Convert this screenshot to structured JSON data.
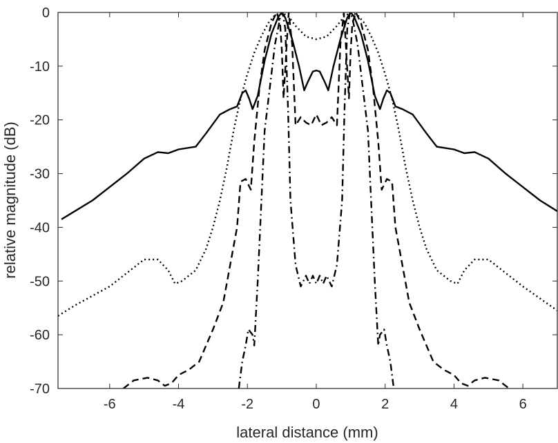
{
  "chart_data": {
    "type": "line",
    "title": "",
    "xlabel": "lateral distance (mm)",
    "ylabel": "relative magnitude (dB)",
    "xlim": [
      -7.5,
      7.0
    ],
    "ylim": [
      -70,
      0
    ],
    "xticks": [
      -6,
      -4,
      -2,
      0,
      2,
      4,
      6
    ],
    "xtick_labels": [
      "-6",
      "-4",
      "-2",
      "0",
      "2",
      "4",
      "6"
    ],
    "yticks": [
      0,
      -10,
      -20,
      -30,
      -40,
      -50,
      -60,
      -70
    ],
    "ytick_labels": [
      "0",
      "-10",
      "-20",
      "-30",
      "-40",
      "-50",
      "-60",
      "-70"
    ],
    "grid": false,
    "legend": "none",
    "series": [
      {
        "style": "solid",
        "points": [
          [
            -7.4,
            -38.5
          ],
          [
            -6.5,
            -35.0
          ],
          [
            -5.5,
            -30.0
          ],
          [
            -5.0,
            -27.2
          ],
          [
            -4.6,
            -26.0
          ],
          [
            -4.3,
            -26.2
          ],
          [
            -4.0,
            -25.5
          ],
          [
            -3.5,
            -25.0
          ],
          [
            -3.2,
            -22.5
          ],
          [
            -2.8,
            -19.0
          ],
          [
            -2.5,
            -18.0
          ],
          [
            -2.3,
            -17.5
          ],
          [
            -2.15,
            -15.0
          ],
          [
            -2.05,
            -14.5
          ],
          [
            -1.95,
            -16.0
          ],
          [
            -1.85,
            -18.0
          ],
          [
            -1.7,
            -15.5
          ],
          [
            -1.5,
            -9.0
          ],
          [
            -1.3,
            -4.0
          ],
          [
            -1.1,
            -0.8
          ],
          [
            -1.0,
            0.0
          ],
          [
            -0.9,
            -1.0
          ],
          [
            -0.7,
            -5.0
          ],
          [
            -0.5,
            -10.0
          ],
          [
            -0.35,
            -14.5
          ],
          [
            -0.25,
            -13.0
          ],
          [
            -0.1,
            -11.0
          ],
          [
            0.0,
            -10.8
          ],
          [
            0.1,
            -11.0
          ],
          [
            0.25,
            -13.0
          ],
          [
            0.35,
            -14.5
          ],
          [
            0.5,
            -10.0
          ],
          [
            0.7,
            -5.0
          ],
          [
            0.9,
            -1.0
          ],
          [
            1.0,
            0.0
          ],
          [
            1.1,
            -0.8
          ],
          [
            1.3,
            -4.0
          ],
          [
            1.5,
            -9.0
          ],
          [
            1.7,
            -15.5
          ],
          [
            1.85,
            -18.0
          ],
          [
            1.95,
            -16.0
          ],
          [
            2.05,
            -14.5
          ],
          [
            2.15,
            -15.0
          ],
          [
            2.3,
            -17.5
          ],
          [
            2.5,
            -18.0
          ],
          [
            2.8,
            -19.0
          ],
          [
            3.2,
            -22.5
          ],
          [
            3.5,
            -25.0
          ],
          [
            4.0,
            -25.5
          ],
          [
            4.3,
            -26.2
          ],
          [
            4.6,
            -26.0
          ],
          [
            5.0,
            -27.2
          ],
          [
            5.5,
            -30.0
          ],
          [
            6.5,
            -35.0
          ],
          [
            7.0,
            -37.0
          ]
        ]
      },
      {
        "style": "dotted",
        "points": [
          [
            -7.5,
            -56.5
          ],
          [
            -7.0,
            -54.5
          ],
          [
            -6.0,
            -51.0
          ],
          [
            -5.5,
            -48.5
          ],
          [
            -5.0,
            -46.0
          ],
          [
            -4.6,
            -46.0
          ],
          [
            -4.3,
            -48.0
          ],
          [
            -4.1,
            -50.5
          ],
          [
            -3.9,
            -50.0
          ],
          [
            -3.5,
            -48.0
          ],
          [
            -3.2,
            -44.0
          ],
          [
            -3.0,
            -40.0
          ],
          [
            -2.8,
            -35.0
          ],
          [
            -2.6,
            -29.0
          ],
          [
            -2.4,
            -22.0
          ],
          [
            -2.2,
            -16.0
          ],
          [
            -2.0,
            -11.5
          ],
          [
            -1.8,
            -7.5
          ],
          [
            -1.6,
            -4.5
          ],
          [
            -1.4,
            -2.0
          ],
          [
            -1.2,
            -0.5
          ],
          [
            -1.0,
            0.0
          ],
          [
            -0.8,
            -0.8
          ],
          [
            -0.6,
            -2.5
          ],
          [
            -0.3,
            -4.5
          ],
          [
            0.0,
            -5.0
          ],
          [
            0.3,
            -4.5
          ],
          [
            0.6,
            -2.5
          ],
          [
            0.8,
            -0.8
          ],
          [
            1.0,
            0.0
          ],
          [
            1.2,
            -0.5
          ],
          [
            1.4,
            -2.0
          ],
          [
            1.6,
            -4.5
          ],
          [
            1.8,
            -7.5
          ],
          [
            2.0,
            -11.5
          ],
          [
            2.2,
            -16.0
          ],
          [
            2.4,
            -22.0
          ],
          [
            2.6,
            -29.0
          ],
          [
            2.8,
            -35.0
          ],
          [
            3.0,
            -40.0
          ],
          [
            3.2,
            -44.0
          ],
          [
            3.5,
            -48.0
          ],
          [
            3.9,
            -50.0
          ],
          [
            4.1,
            -50.5
          ],
          [
            4.3,
            -48.0
          ],
          [
            4.6,
            -46.0
          ],
          [
            5.0,
            -46.0
          ],
          [
            5.5,
            -48.5
          ],
          [
            6.0,
            -51.0
          ],
          [
            7.0,
            -55.5
          ]
        ]
      },
      {
        "style": "dashed",
        "points": [
          [
            -5.6,
            -70.0
          ],
          [
            -5.3,
            -68.5
          ],
          [
            -4.9,
            -68.0
          ],
          [
            -4.6,
            -68.5
          ],
          [
            -4.4,
            -69.5
          ],
          [
            -4.2,
            -69.0
          ],
          [
            -4.0,
            -67.5
          ],
          [
            -3.7,
            -66.5
          ],
          [
            -3.4,
            -65.0
          ],
          [
            -3.2,
            -62.0
          ],
          [
            -3.0,
            -59.0
          ],
          [
            -2.7,
            -54.0
          ],
          [
            -2.5,
            -47.0
          ],
          [
            -2.3,
            -40.0
          ],
          [
            -2.2,
            -31.5
          ],
          [
            -2.05,
            -31.0
          ],
          [
            -1.9,
            -33.0
          ],
          [
            -1.8,
            -24.0
          ],
          [
            -1.65,
            -14.0
          ],
          [
            -1.5,
            -7.0
          ],
          [
            -1.3,
            -2.0
          ],
          [
            -1.15,
            0.0
          ],
          [
            -1.05,
            -2.0
          ],
          [
            -1.0,
            -7.0
          ],
          [
            -0.95,
            -16.0
          ],
          [
            -0.85,
            -5.0
          ],
          [
            -0.8,
            0.0
          ],
          [
            -0.7,
            -6.0
          ],
          [
            -0.6,
            -21.0
          ],
          [
            -0.45,
            -19.5
          ],
          [
            -0.3,
            -20.5
          ],
          [
            -0.15,
            -21.0
          ],
          [
            0.0,
            -19.0
          ],
          [
            0.15,
            -21.0
          ],
          [
            0.3,
            -20.5
          ],
          [
            0.45,
            -19.5
          ],
          [
            0.6,
            -21.0
          ],
          [
            0.7,
            -6.0
          ],
          [
            0.8,
            0.0
          ],
          [
            0.85,
            -5.0
          ],
          [
            0.95,
            -16.0
          ],
          [
            1.0,
            -7.0
          ],
          [
            1.05,
            -2.0
          ],
          [
            1.15,
            0.0
          ],
          [
            1.3,
            -2.0
          ],
          [
            1.5,
            -7.0
          ],
          [
            1.65,
            -14.0
          ],
          [
            1.8,
            -24.0
          ],
          [
            1.9,
            -33.0
          ],
          [
            2.05,
            -31.0
          ],
          [
            2.2,
            -31.5
          ],
          [
            2.3,
            -40.0
          ],
          [
            2.5,
            -47.0
          ],
          [
            2.7,
            -54.0
          ],
          [
            3.0,
            -59.0
          ],
          [
            3.2,
            -62.0
          ],
          [
            3.4,
            -65.0
          ],
          [
            3.7,
            -66.5
          ],
          [
            4.0,
            -67.5
          ],
          [
            4.2,
            -69.0
          ],
          [
            4.4,
            -69.5
          ],
          [
            4.6,
            -68.5
          ],
          [
            4.9,
            -68.0
          ],
          [
            5.3,
            -68.5
          ],
          [
            5.6,
            -70.0
          ]
        ]
      },
      {
        "style": "dashdot",
        "points": [
          [
            -2.25,
            -70.0
          ],
          [
            -2.15,
            -65.0
          ],
          [
            -2.05,
            -62.0
          ],
          [
            -1.97,
            -59.0
          ],
          [
            -1.85,
            -60.0
          ],
          [
            -1.8,
            -62.0
          ],
          [
            -1.7,
            -50.0
          ],
          [
            -1.6,
            -36.0
          ],
          [
            -1.5,
            -22.0
          ],
          [
            -1.35,
            -14.0
          ],
          [
            -1.2,
            -6.0
          ],
          [
            -1.05,
            -1.0
          ],
          [
            -0.98,
            0.0
          ],
          [
            -0.9,
            -3.0
          ],
          [
            -0.82,
            -18.0
          ],
          [
            -0.75,
            -35.0
          ],
          [
            -0.6,
            -47.0
          ],
          [
            -0.45,
            -51.0
          ],
          [
            -0.3,
            -49.0
          ],
          [
            -0.2,
            -50.5
          ],
          [
            -0.1,
            -49.0
          ],
          [
            0.0,
            -50.5
          ],
          [
            0.1,
            -49.0
          ],
          [
            0.2,
            -50.5
          ],
          [
            0.3,
            -49.0
          ],
          [
            0.45,
            -51.0
          ],
          [
            0.6,
            -47.0
          ],
          [
            0.75,
            -35.0
          ],
          [
            0.82,
            -18.0
          ],
          [
            0.9,
            -3.0
          ],
          [
            0.98,
            0.0
          ],
          [
            1.05,
            -1.0
          ],
          [
            1.2,
            -6.0
          ],
          [
            1.35,
            -14.0
          ],
          [
            1.5,
            -22.0
          ],
          [
            1.6,
            -36.0
          ],
          [
            1.7,
            -50.0
          ],
          [
            1.8,
            -62.0
          ],
          [
            1.85,
            -60.0
          ],
          [
            1.97,
            -59.0
          ],
          [
            2.05,
            -62.0
          ],
          [
            2.15,
            -65.0
          ],
          [
            2.25,
            -70.0
          ]
        ]
      }
    ]
  }
}
